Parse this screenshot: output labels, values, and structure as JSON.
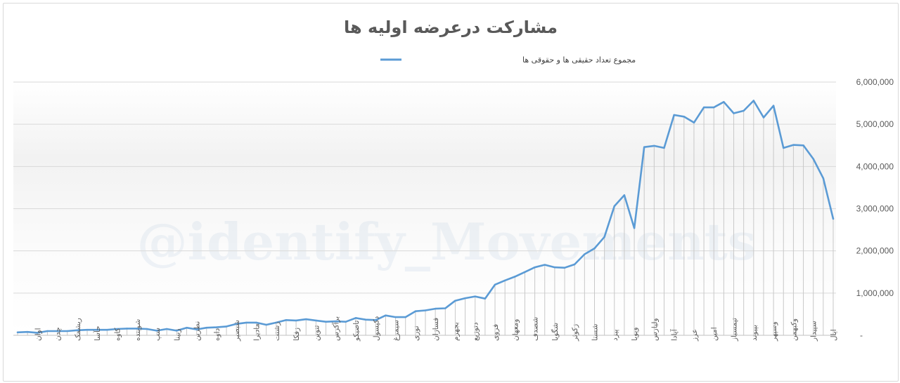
{
  "chart_data": {
    "type": "line",
    "title": "مشارکت درعرضه  اولیه ها",
    "legend_position": "top",
    "watermark": "@identify_Movements",
    "series": [
      {
        "name": "مجموع تعداد حقیقی ها و حقوقی ها",
        "color": "#5b9bd5",
        "values": [
          2760000,
          3720000,
          4180000,
          4500000,
          4510000,
          4440000,
          5440000,
          5160000,
          5560000,
          5320000,
          5260000,
          5530000,
          5400000,
          5400000,
          5040000,
          5180000,
          5220000,
          4440000,
          4490000,
          4460000,
          2540000,
          3320000,
          3060000,
          2330000,
          2060000,
          1920000,
          1680000,
          1600000,
          1610000,
          1670000,
          1610000,
          1500000,
          1390000,
          1300000,
          1200000,
          870000,
          920000,
          880000,
          820000,
          640000,
          630000,
          590000,
          570000,
          430000,
          430000,
          470000,
          360000,
          370000,
          410000,
          320000,
          330000,
          320000,
          350000,
          380000,
          350000,
          360000,
          300000,
          250000,
          300000,
          300000,
          270000,
          210000,
          190000,
          180000,
          140000,
          180000,
          110000,
          150000,
          110000,
          150000,
          160000,
          160000,
          150000,
          130000,
          130000,
          130000,
          120000,
          100000,
          100000,
          100000,
          60000,
          80000,
          70000
        ]
      }
    ],
    "x_labels": [
      "ایال",
      "سپیدار",
      "وکبهمن",
      "وسپهر",
      "بپیوند",
      "تپمسباز",
      "امین",
      "عرز",
      "آپادا",
      "ولیارس",
      "وپویا",
      "پیزد",
      "شستا",
      "زکوثر",
      "شگویا",
      "شصدف",
      "ومعهان",
      "فروی",
      "دتوزیع",
      "بجهرم",
      "فسازان",
      "نوری",
      "سیمرغ",
      "دکپسول",
      "تاصیکو",
      "برآکرس",
      "تنوین",
      "زفکا",
      "زشنت",
      "مادیرا",
      "شبصیر",
      "داوه",
      "نطرین",
      "زبینا",
      "سپ",
      "شوینده",
      "کاوه",
      "حآسا",
      "ریشمک",
      "چدن",
      "اوان"
    ],
    "ylim": [
      0,
      6000000
    ],
    "y_ticks": [
      "6,000,000",
      "5,000,000",
      "4,000,000",
      "3,000,000",
      "2,000,000",
      "1,000,000",
      "-"
    ],
    "grid": true,
    "drop_lines": true
  }
}
